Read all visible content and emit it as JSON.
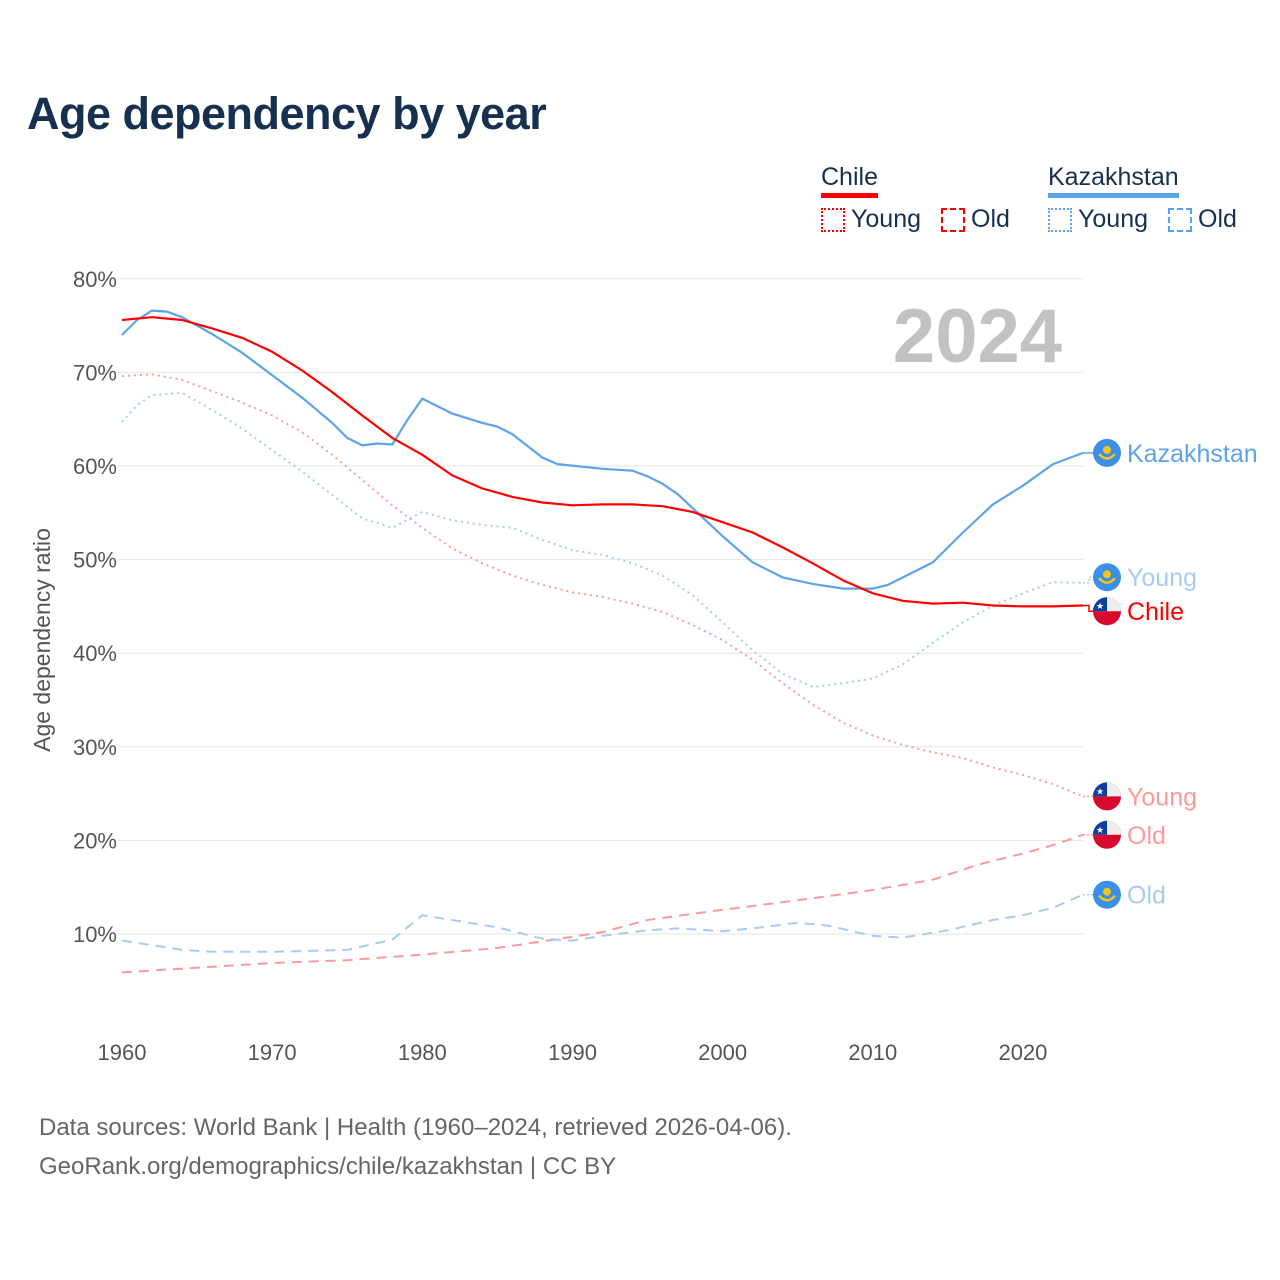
{
  "title": "Age dependency by year",
  "legend": {
    "countries": [
      {
        "name": "Chile",
        "color": "#ff0000",
        "young_label": "Young",
        "old_label": "Old"
      },
      {
        "name": "Kazakhstan",
        "color": "#5ba3ee",
        "young_label": "Young",
        "old_label": "Old"
      }
    ]
  },
  "footer": {
    "line1": "Data sources: World Bank | Health (1960–2024, retrieved 2026-04-06).",
    "line2": "GeoRank.org/demographics/chile/kazakhstan | CC BY"
  },
  "chart_data": {
    "type": "line",
    "title": "Age dependency by year",
    "ylabel": "Age dependency ratio",
    "xlabel": "",
    "year_watermark": "2024",
    "xlim": [
      1960,
      2024
    ],
    "ylim": [
      0,
      80
    ],
    "x_ticks": [
      1960,
      1970,
      1980,
      1990,
      2000,
      2010,
      2020
    ],
    "y_ticks": [
      10,
      20,
      30,
      40,
      50,
      60,
      70,
      80
    ],
    "y_tick_labels": [
      "10%",
      "20%",
      "30%",
      "40%",
      "50%",
      "60%",
      "70%",
      "80%"
    ],
    "grid": true,
    "legend_position": "top-right",
    "series": [
      {
        "name": "Kazakhstan",
        "end_label": "Kazakhstan",
        "country": "kz",
        "color": "#5ba3ee",
        "style": "solid",
        "width": 2.2,
        "points": [
          [
            1960,
            74
          ],
          [
            1961,
            75.6
          ],
          [
            1962,
            76.6
          ],
          [
            1963,
            76.5
          ],
          [
            1964,
            75.9
          ],
          [
            1966,
            74.1
          ],
          [
            1968,
            72.1
          ],
          [
            1970,
            69.7
          ],
          [
            1972,
            67.3
          ],
          [
            1974,
            64.6
          ],
          [
            1975,
            63
          ],
          [
            1976,
            62.2
          ],
          [
            1977,
            62.4
          ],
          [
            1978,
            62.3
          ],
          [
            1979,
            64.9
          ],
          [
            1980,
            67.2
          ],
          [
            1982,
            65.6
          ],
          [
            1984,
            64.6
          ],
          [
            1985,
            64.2
          ],
          [
            1986,
            63.4
          ],
          [
            1988,
            60.9
          ],
          [
            1989,
            60.2
          ],
          [
            1992,
            59.7
          ],
          [
            1994,
            59.5
          ],
          [
            1995,
            58.9
          ],
          [
            1996,
            58.1
          ],
          [
            1997,
            57
          ],
          [
            1998,
            55.5
          ],
          [
            2000,
            52.5
          ],
          [
            2002,
            49.7
          ],
          [
            2004,
            48.1
          ],
          [
            2006,
            47.4
          ],
          [
            2008,
            46.9
          ],
          [
            2010,
            46.9
          ],
          [
            2011,
            47.3
          ],
          [
            2012,
            48.1
          ],
          [
            2014,
            49.7
          ],
          [
            2016,
            52.9
          ],
          [
            2018,
            55.9
          ],
          [
            2020,
            57.9
          ],
          [
            2022,
            60.2
          ],
          [
            2024,
            61.4
          ]
        ]
      },
      {
        "name": "Kazakhstan Young",
        "end_label": "Young",
        "country": "kz",
        "color": "#a8cbf0",
        "style": "dotted",
        "width": 2,
        "points": [
          [
            1960,
            64.7
          ],
          [
            1961,
            66.5
          ],
          [
            1962,
            67.6
          ],
          [
            1964,
            67.8
          ],
          [
            1966,
            66
          ],
          [
            1968,
            64
          ],
          [
            1970,
            61.7
          ],
          [
            1972,
            59.4
          ],
          [
            1974,
            56.9
          ],
          [
            1976,
            54.4
          ],
          [
            1978,
            53.4
          ],
          [
            1980,
            55.1
          ],
          [
            1982,
            54.2
          ],
          [
            1984,
            53.7
          ],
          [
            1986,
            53.4
          ],
          [
            1988,
            52.1
          ],
          [
            1990,
            51
          ],
          [
            1992,
            50.5
          ],
          [
            1994,
            49.6
          ],
          [
            1996,
            48.3
          ],
          [
            1998,
            46.2
          ],
          [
            2000,
            43.3
          ],
          [
            2002,
            40.3
          ],
          [
            2004,
            37.8
          ],
          [
            2006,
            36.4
          ],
          [
            2008,
            36.8
          ],
          [
            2010,
            37.3
          ],
          [
            2012,
            38.8
          ],
          [
            2014,
            41.1
          ],
          [
            2016,
            43.3
          ],
          [
            2018,
            45.1
          ],
          [
            2020,
            46.4
          ],
          [
            2022,
            47.6
          ],
          [
            2024,
            47.5
          ]
        ]
      },
      {
        "name": "Chile",
        "end_label": "Chile",
        "country": "cl",
        "color": "#ff0000",
        "style": "solid",
        "width": 2.2,
        "points": [
          [
            1960,
            75.6
          ],
          [
            1962,
            75.9
          ],
          [
            1964,
            75.6
          ],
          [
            1966,
            74.7
          ],
          [
            1968,
            73.7
          ],
          [
            1970,
            72.2
          ],
          [
            1972,
            70.2
          ],
          [
            1974,
            67.9
          ],
          [
            1976,
            65.4
          ],
          [
            1978,
            63
          ],
          [
            1980,
            61.2
          ],
          [
            1982,
            59
          ],
          [
            1984,
            57.6
          ],
          [
            1986,
            56.7
          ],
          [
            1988,
            56.1
          ],
          [
            1990,
            55.8
          ],
          [
            1992,
            55.9
          ],
          [
            1994,
            55.9
          ],
          [
            1996,
            55.7
          ],
          [
            1998,
            55.1
          ],
          [
            2000,
            54
          ],
          [
            2002,
            52.9
          ],
          [
            2004,
            51.3
          ],
          [
            2006,
            49.6
          ],
          [
            2008,
            47.8
          ],
          [
            2010,
            46.4
          ],
          [
            2012,
            45.6
          ],
          [
            2014,
            45.3
          ],
          [
            2016,
            45.4
          ],
          [
            2018,
            45.1
          ],
          [
            2020,
            45
          ],
          [
            2022,
            45
          ],
          [
            2024,
            45.1
          ]
        ]
      },
      {
        "name": "Chile Young",
        "end_label": "Young",
        "country": "cl",
        "color": "#ff9a9a",
        "style": "dotted",
        "width": 2,
        "points": [
          [
            1960,
            69.6
          ],
          [
            1962,
            69.8
          ],
          [
            1964,
            69.2
          ],
          [
            1966,
            68
          ],
          [
            1968,
            66.8
          ],
          [
            1970,
            65.4
          ],
          [
            1972,
            63.6
          ],
          [
            1974,
            61.2
          ],
          [
            1976,
            58.5
          ],
          [
            1978,
            55.8
          ],
          [
            1980,
            53.4
          ],
          [
            1982,
            51.2
          ],
          [
            1984,
            49.6
          ],
          [
            1986,
            48.3
          ],
          [
            1988,
            47.3
          ],
          [
            1990,
            46.5
          ],
          [
            1992,
            46
          ],
          [
            1994,
            45.3
          ],
          [
            1996,
            44.4
          ],
          [
            1998,
            43
          ],
          [
            2000,
            41.4
          ],
          [
            2002,
            39.3
          ],
          [
            2004,
            36.8
          ],
          [
            2006,
            34.5
          ],
          [
            2008,
            32.6
          ],
          [
            2010,
            31.2
          ],
          [
            2012,
            30.2
          ],
          [
            2014,
            29.4
          ],
          [
            2016,
            28.8
          ],
          [
            2018,
            27.8
          ],
          [
            2020,
            27
          ],
          [
            2022,
            26
          ],
          [
            2024,
            24.7
          ]
        ]
      },
      {
        "name": "Chile Old",
        "end_label": "Old",
        "country": "cl",
        "color": "#ff9a9a",
        "style": "dashed",
        "width": 2,
        "points": [
          [
            1960,
            5.9
          ],
          [
            1970,
            6.9
          ],
          [
            1975,
            7.2
          ],
          [
            1980,
            7.8
          ],
          [
            1985,
            8.5
          ],
          [
            1990,
            9.7
          ],
          [
            1992,
            10.2
          ],
          [
            1995,
            11.5
          ],
          [
            2000,
            12.6
          ],
          [
            2005,
            13.6
          ],
          [
            2010,
            14.7
          ],
          [
            2014,
            15.8
          ],
          [
            2017,
            17.4
          ],
          [
            2020,
            18.6
          ],
          [
            2022,
            19.5
          ],
          [
            2024,
            20.6
          ]
        ]
      },
      {
        "name": "Kazakhstan Old",
        "end_label": "Old",
        "country": "kz",
        "color": "#a8cbf0",
        "style": "dashed",
        "width": 2,
        "points": [
          [
            1960,
            9.3
          ],
          [
            1962,
            8.8
          ],
          [
            1964,
            8.3
          ],
          [
            1966,
            8.1
          ],
          [
            1970,
            8.1
          ],
          [
            1975,
            8.3
          ],
          [
            1978,
            9.4
          ],
          [
            1980,
            12
          ],
          [
            1982,
            11.5
          ],
          [
            1985,
            10.7
          ],
          [
            1988,
            9.5
          ],
          [
            1990,
            9.3
          ],
          [
            1992,
            9.8
          ],
          [
            1995,
            10.4
          ],
          [
            1997,
            10.6
          ],
          [
            2000,
            10.3
          ],
          [
            2002,
            10.6
          ],
          [
            2005,
            11.2
          ],
          [
            2007,
            10.9
          ],
          [
            2010,
            9.8
          ],
          [
            2012,
            9.6
          ],
          [
            2015,
            10.4
          ],
          [
            2018,
            11.5
          ],
          [
            2020,
            12
          ],
          [
            2022,
            12.8
          ],
          [
            2024,
            14.2
          ]
        ]
      }
    ]
  }
}
